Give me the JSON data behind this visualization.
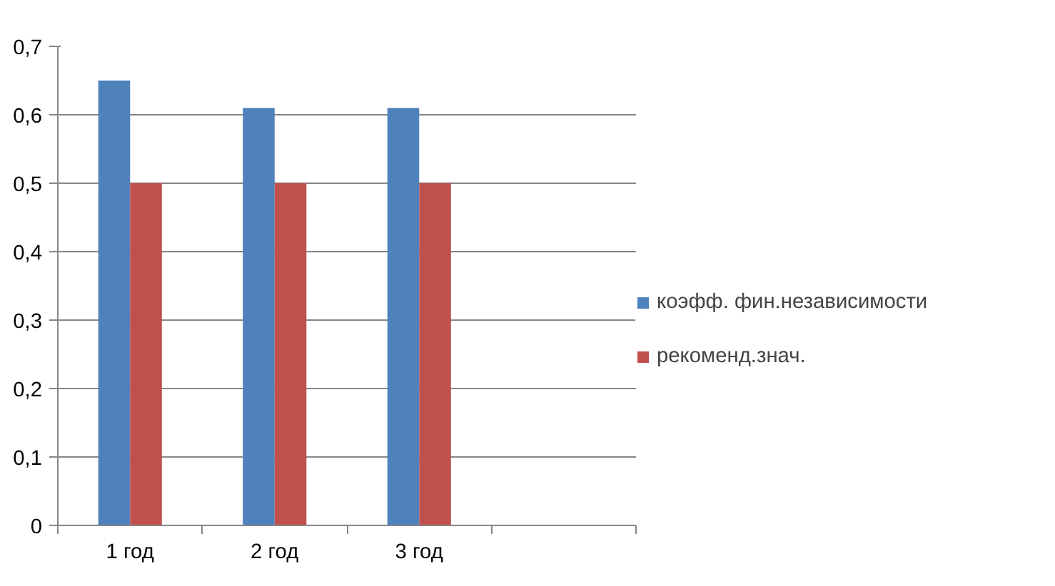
{
  "chart_data": {
    "type": "bar",
    "categories": [
      "1 год",
      "2 год",
      "3 год",
      null
    ],
    "series": [
      {
        "name": "коэфф. фин.независимости",
        "color": "#4f81bd",
        "values": [
          0.65,
          0.61,
          0.61,
          null
        ]
      },
      {
        "name": "рекоменд.знач.",
        "color": "#c0504d",
        "values": [
          0.5,
          0.5,
          0.5,
          null
        ]
      }
    ],
    "ylim": [
      0,
      0.7
    ],
    "yticks": [
      {
        "value": 0,
        "label": "0"
      },
      {
        "value": 0.1,
        "label": "0,1"
      },
      {
        "value": 0.2,
        "label": "0,2"
      },
      {
        "value": 0.3,
        "label": "0,3"
      },
      {
        "value": 0.4,
        "label": "0,4"
      },
      {
        "value": 0.5,
        "label": "0,5"
      },
      {
        "value": 0.6,
        "label": "0,6"
      },
      {
        "value": 0.7,
        "label": "0,7"
      }
    ],
    "grid": "y",
    "legend": "right"
  }
}
